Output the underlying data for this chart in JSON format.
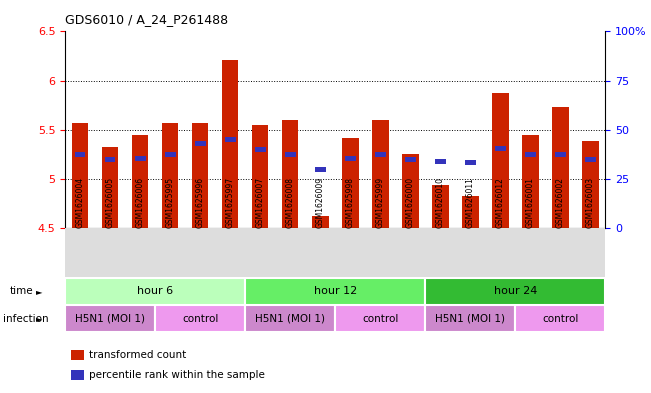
{
  "title": "GDS6010 / A_24_P261488",
  "samples": [
    "GSM1626004",
    "GSM1626005",
    "GSM1626006",
    "GSM1625995",
    "GSM1625996",
    "GSM1625997",
    "GSM1626007",
    "GSM1626008",
    "GSM1626009",
    "GSM1625998",
    "GSM1625999",
    "GSM1626000",
    "GSM1626010",
    "GSM1626011",
    "GSM1626012",
    "GSM1626001",
    "GSM1626002",
    "GSM1626003"
  ],
  "bar_values": [
    5.57,
    5.32,
    5.45,
    5.57,
    5.57,
    6.21,
    5.55,
    5.6,
    4.62,
    5.42,
    5.6,
    5.25,
    4.94,
    4.82,
    5.87,
    5.45,
    5.73,
    5.38
  ],
  "blue_marker_values": [
    5.22,
    5.17,
    5.18,
    5.22,
    5.33,
    5.37,
    5.27,
    5.22,
    5.07,
    5.18,
    5.22,
    5.17,
    5.15,
    5.14,
    5.28,
    5.22,
    5.22,
    5.17
  ],
  "blue_standalone_indices": [
    8,
    12,
    13
  ],
  "ylim": [
    4.5,
    6.5
  ],
  "yticks": [
    4.5,
    5.0,
    5.5,
    6.0,
    6.5
  ],
  "ytick_labels": [
    "4.5",
    "5",
    "5.5",
    "6",
    "6.5"
  ],
  "right_yticks": [
    0,
    25,
    50,
    75,
    100
  ],
  "right_ytick_labels": [
    "0",
    "25",
    "50",
    "75",
    "100%"
  ],
  "grid_values": [
    5.0,
    5.5,
    6.0
  ],
  "bar_bottom": 4.5,
  "bar_color": "#cc2200",
  "blue_color": "#3333bb",
  "time_colors": [
    "#bbffbb",
    "#66ee66",
    "#33bb33"
  ],
  "time_labels": [
    "hour 6",
    "hour 12",
    "hour 24"
  ],
  "time_ranges": [
    [
      0,
      6
    ],
    [
      6,
      12
    ],
    [
      12,
      18
    ]
  ],
  "h5n1_color": "#cc88cc",
  "control_color": "#ee99ee",
  "inf_ranges": [
    [
      0,
      3,
      "H5N1 (MOI 1)"
    ],
    [
      3,
      6,
      "control"
    ],
    [
      6,
      9,
      "H5N1 (MOI 1)"
    ],
    [
      9,
      12,
      "control"
    ],
    [
      12,
      15,
      "H5N1 (MOI 1)"
    ],
    [
      15,
      18,
      "control"
    ]
  ],
  "legend_labels": [
    "transformed count",
    "percentile rank within the sample"
  ],
  "legend_colors": [
    "#cc2200",
    "#3333bb"
  ]
}
